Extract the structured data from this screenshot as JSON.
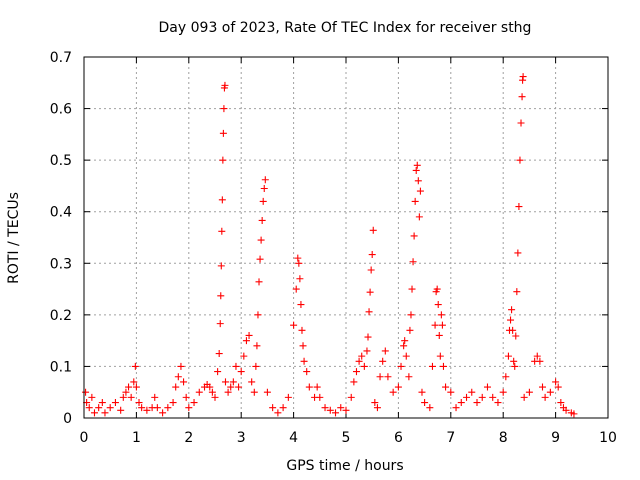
{
  "chart_data": {
    "type": "scatter",
    "title": "Day 093 of 2023, Rate Of TEC Index for receiver sthg",
    "xlabel": "GPS time / hours",
    "ylabel": "ROTI / TECUs",
    "xlim": [
      0,
      10
    ],
    "ylim": [
      0,
      0.7
    ],
    "x_ticks": [
      "0",
      "1",
      "2",
      "3",
      "4",
      "5",
      "6",
      "7",
      "8",
      "9",
      "10"
    ],
    "y_ticks": [
      "0",
      "0.1",
      "0.2",
      "0.3",
      "0.4",
      "0.5",
      "0.6",
      "0.7"
    ],
    "grid": true,
    "marker": "+",
    "color": "#ff0000",
    "series": [
      {
        "name": "ROTI",
        "points": [
          [
            0.03,
            0.05
          ],
          [
            0.05,
            0.03
          ],
          [
            0.1,
            0.02
          ],
          [
            0.15,
            0.04
          ],
          [
            0.2,
            0.01
          ],
          [
            0.28,
            0.02
          ],
          [
            0.35,
            0.03
          ],
          [
            0.4,
            0.01
          ],
          [
            0.5,
            0.02
          ],
          [
            0.6,
            0.03
          ],
          [
            0.7,
            0.015
          ],
          [
            0.75,
            0.04
          ],
          [
            0.8,
            0.05
          ],
          [
            0.85,
            0.06
          ],
          [
            0.9,
            0.04
          ],
          [
            0.95,
            0.07
          ],
          [
            0.98,
            0.1
          ],
          [
            1.0,
            0.06
          ],
          [
            1.05,
            0.03
          ],
          [
            1.1,
            0.02
          ],
          [
            1.2,
            0.015
          ],
          [
            1.3,
            0.02
          ],
          [
            1.35,
            0.04
          ],
          [
            1.4,
            0.02
          ],
          [
            1.5,
            0.01
          ],
          [
            1.6,
            0.02
          ],
          [
            1.7,
            0.03
          ],
          [
            1.75,
            0.06
          ],
          [
            1.8,
            0.08
          ],
          [
            1.85,
            0.1
          ],
          [
            1.9,
            0.07
          ],
          [
            1.95,
            0.04
          ],
          [
            2.0,
            0.02
          ],
          [
            2.1,
            0.03
          ],
          [
            2.2,
            0.05
          ],
          [
            2.3,
            0.06
          ],
          [
            2.35,
            0.065
          ],
          [
            2.4,
            0.06
          ],
          [
            2.45,
            0.05
          ],
          [
            2.5,
            0.04
          ],
          [
            2.55,
            0.09
          ],
          [
            2.58,
            0.125
          ],
          [
            2.6,
            0.183
          ],
          [
            2.61,
            0.237
          ],
          [
            2.62,
            0.295
          ],
          [
            2.63,
            0.362
          ],
          [
            2.64,
            0.423
          ],
          [
            2.65,
            0.5
          ],
          [
            2.66,
            0.552
          ],
          [
            2.67,
            0.6
          ],
          [
            2.68,
            0.64
          ],
          [
            2.69,
            0.645
          ],
          [
            2.7,
            0.07
          ],
          [
            2.75,
            0.05
          ],
          [
            2.8,
            0.06
          ],
          [
            2.85,
            0.07
          ],
          [
            2.9,
            0.1
          ],
          [
            2.95,
            0.06
          ],
          [
            3.0,
            0.09
          ],
          [
            3.05,
            0.12
          ],
          [
            3.1,
            0.15
          ],
          [
            3.15,
            0.16
          ],
          [
            3.2,
            0.07
          ],
          [
            3.25,
            0.05
          ],
          [
            3.28,
            0.1
          ],
          [
            3.3,
            0.14
          ],
          [
            3.32,
            0.2
          ],
          [
            3.34,
            0.264
          ],
          [
            3.36,
            0.308
          ],
          [
            3.38,
            0.345
          ],
          [
            3.4,
            0.383
          ],
          [
            3.42,
            0.42
          ],
          [
            3.44,
            0.445
          ],
          [
            3.46,
            0.462
          ],
          [
            3.5,
            0.05
          ],
          [
            3.6,
            0.02
          ],
          [
            3.7,
            0.01
          ],
          [
            3.8,
            0.02
          ],
          [
            3.9,
            0.04
          ],
          [
            4.0,
            0.18
          ],
          [
            4.05,
            0.25
          ],
          [
            4.08,
            0.31
          ],
          [
            4.1,
            0.3
          ],
          [
            4.12,
            0.27
          ],
          [
            4.14,
            0.22
          ],
          [
            4.16,
            0.17
          ],
          [
            4.18,
            0.14
          ],
          [
            4.2,
            0.11
          ],
          [
            4.25,
            0.09
          ],
          [
            4.3,
            0.06
          ],
          [
            4.4,
            0.04
          ],
          [
            4.45,
            0.06
          ],
          [
            4.5,
            0.04
          ],
          [
            4.6,
            0.02
          ],
          [
            4.7,
            0.015
          ],
          [
            4.8,
            0.01
          ],
          [
            4.9,
            0.02
          ],
          [
            5.0,
            0.015
          ],
          [
            5.1,
            0.04
          ],
          [
            5.15,
            0.07
          ],
          [
            5.2,
            0.09
          ],
          [
            5.25,
            0.11
          ],
          [
            5.3,
            0.12
          ],
          [
            5.35,
            0.1
          ],
          [
            5.4,
            0.13
          ],
          [
            5.42,
            0.157
          ],
          [
            5.44,
            0.206
          ],
          [
            5.46,
            0.244
          ],
          [
            5.48,
            0.287
          ],
          [
            5.5,
            0.317
          ],
          [
            5.52,
            0.364
          ],
          [
            5.55,
            0.03
          ],
          [
            5.6,
            0.02
          ],
          [
            5.65,
            0.08
          ],
          [
            5.7,
            0.11
          ],
          [
            5.75,
            0.13
          ],
          [
            5.8,
            0.08
          ],
          [
            5.9,
            0.05
          ],
          [
            6.0,
            0.06
          ],
          [
            6.05,
            0.1
          ],
          [
            6.1,
            0.14
          ],
          [
            6.12,
            0.15
          ],
          [
            6.15,
            0.12
          ],
          [
            6.2,
            0.08
          ],
          [
            6.22,
            0.17
          ],
          [
            6.24,
            0.2
          ],
          [
            6.26,
            0.25
          ],
          [
            6.28,
            0.303
          ],
          [
            6.3,
            0.353
          ],
          [
            6.32,
            0.42
          ],
          [
            6.34,
            0.48
          ],
          [
            6.36,
            0.49
          ],
          [
            6.38,
            0.46
          ],
          [
            6.4,
            0.39
          ],
          [
            6.42,
            0.44
          ],
          [
            6.45,
            0.05
          ],
          [
            6.5,
            0.03
          ],
          [
            6.6,
            0.02
          ],
          [
            6.65,
            0.1
          ],
          [
            6.7,
            0.18
          ],
          [
            6.72,
            0.245
          ],
          [
            6.74,
            0.25
          ],
          [
            6.76,
            0.22
          ],
          [
            6.78,
            0.16
          ],
          [
            6.8,
            0.12
          ],
          [
            6.82,
            0.2
          ],
          [
            6.84,
            0.18
          ],
          [
            6.86,
            0.1
          ],
          [
            6.9,
            0.06
          ],
          [
            7.0,
            0.05
          ],
          [
            7.1,
            0.02
          ],
          [
            7.2,
            0.03
          ],
          [
            7.3,
            0.04
          ],
          [
            7.4,
            0.05
          ],
          [
            7.5,
            0.03
          ],
          [
            7.6,
            0.04
          ],
          [
            7.7,
            0.06
          ],
          [
            7.8,
            0.04
          ],
          [
            7.9,
            0.03
          ],
          [
            8.0,
            0.05
          ],
          [
            8.05,
            0.08
          ],
          [
            8.1,
            0.12
          ],
          [
            8.12,
            0.17
          ],
          [
            8.14,
            0.19
          ],
          [
            8.16,
            0.21
          ],
          [
            8.18,
            0.17
          ],
          [
            8.2,
            0.11
          ],
          [
            8.22,
            0.1
          ],
          [
            8.24,
            0.159
          ],
          [
            8.26,
            0.245
          ],
          [
            8.28,
            0.32
          ],
          [
            8.3,
            0.41
          ],
          [
            8.32,
            0.5
          ],
          [
            8.34,
            0.572
          ],
          [
            8.36,
            0.623
          ],
          [
            8.37,
            0.655
          ],
          [
            8.38,
            0.662
          ],
          [
            8.4,
            0.04
          ],
          [
            8.5,
            0.05
          ],
          [
            8.6,
            0.11
          ],
          [
            8.65,
            0.12
          ],
          [
            8.7,
            0.11
          ],
          [
            8.75,
            0.06
          ],
          [
            8.8,
            0.04
          ],
          [
            8.9,
            0.05
          ],
          [
            9.0,
            0.07
          ],
          [
            9.05,
            0.06
          ],
          [
            9.1,
            0.03
          ],
          [
            9.15,
            0.02
          ],
          [
            9.2,
            0.015
          ],
          [
            9.3,
            0.01
          ],
          [
            9.35,
            0.008
          ]
        ]
      }
    ]
  }
}
